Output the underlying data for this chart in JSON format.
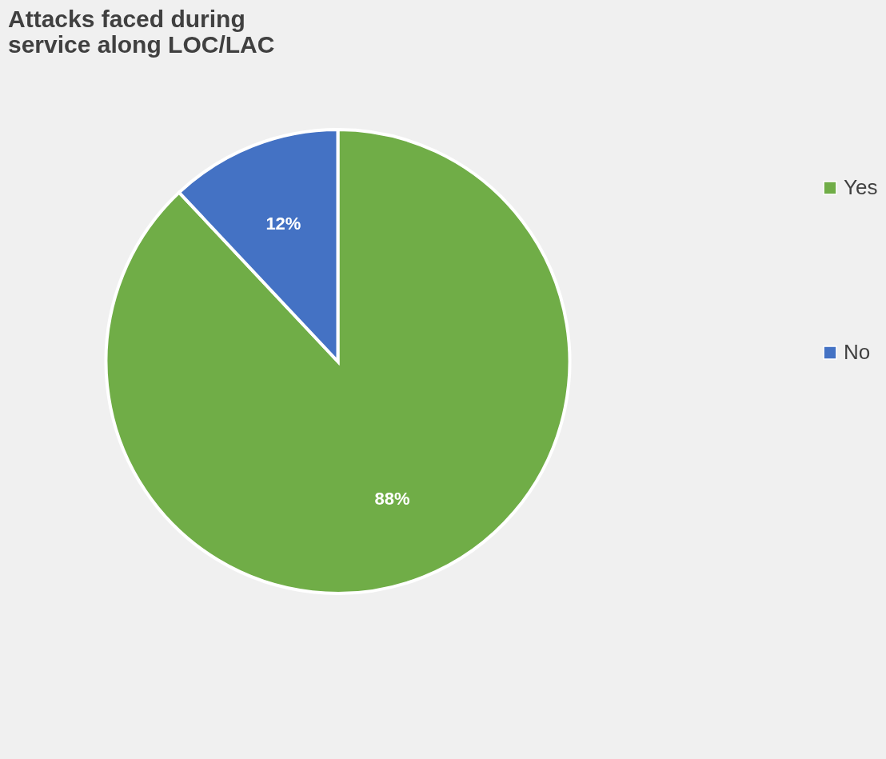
{
  "chart_data": {
    "type": "pie",
    "title": "Attacks faced during service along LOC/LAC",
    "categories": [
      "Yes",
      "No"
    ],
    "values": [
      88,
      12
    ],
    "colors": [
      "#70ad47",
      "#4472c4"
    ],
    "value_labels": [
      "88%",
      "12%"
    ],
    "legend": "right"
  }
}
